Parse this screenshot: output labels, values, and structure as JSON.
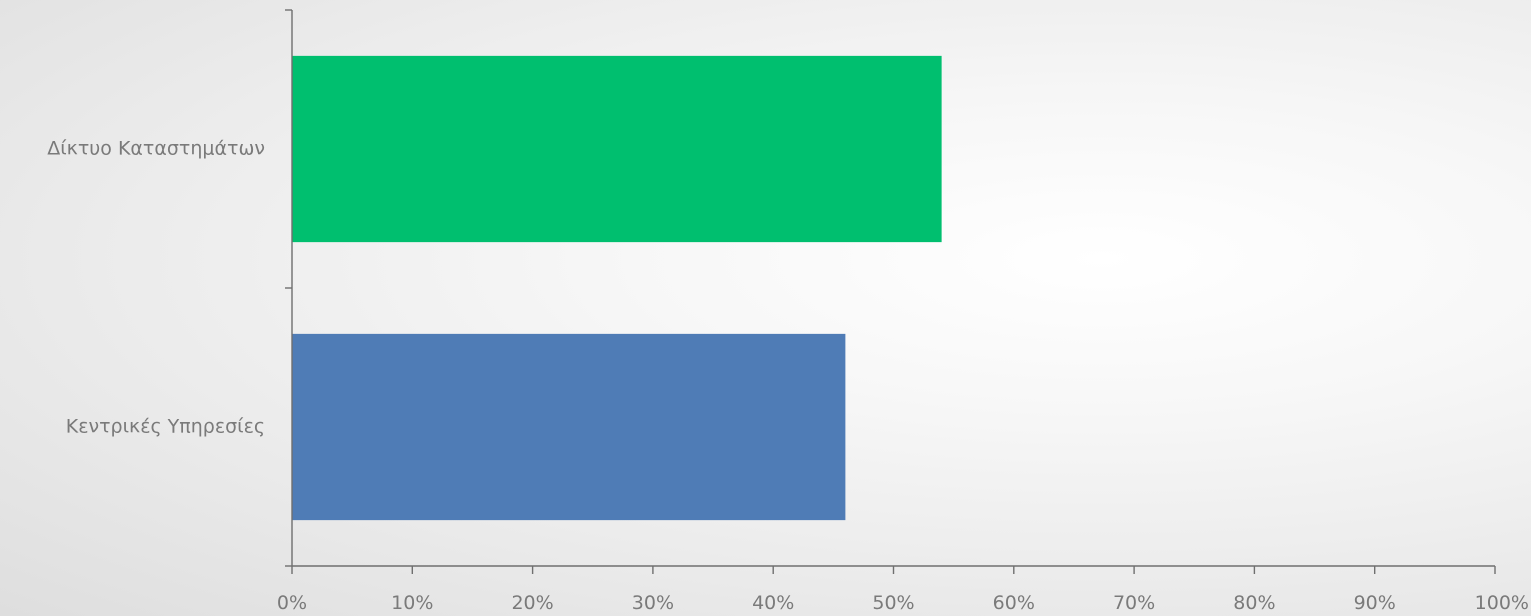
{
  "chart_data": {
    "type": "bar",
    "orientation": "horizontal",
    "title": "",
    "xlabel": "",
    "ylabel": "",
    "categories": [
      "Δίκτυο Καταστημάτων",
      "Κεντρικές Υπηρεσίες"
    ],
    "values": [
      54,
      46
    ],
    "bar_colors": [
      "#00BF6F",
      "#4F7CB6"
    ],
    "xlim": [
      0,
      100
    ],
    "x_ticks": [
      0,
      10,
      20,
      30,
      40,
      50,
      60,
      70,
      80,
      90,
      100
    ],
    "x_tick_labels": [
      "0%",
      "10%",
      "20%",
      "30%",
      "40%",
      "50%",
      "60%",
      "70%",
      "80%",
      "90%",
      "100%"
    ],
    "grid": false,
    "legend": "none"
  }
}
